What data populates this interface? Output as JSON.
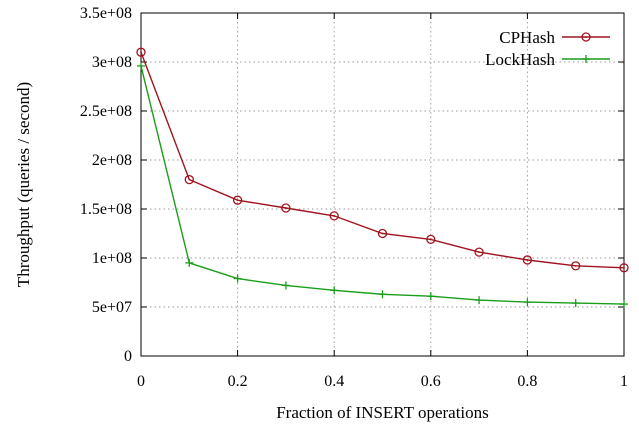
{
  "chart_data": {
    "type": "line",
    "xlabel": "Fraction of INSERT operations",
    "ylabel": "Throughput (queries / second)",
    "xlim": [
      0,
      1
    ],
    "ylim": [
      0,
      350000000
    ],
    "x_ticks": [
      0,
      0.2,
      0.4,
      0.6,
      0.8,
      1
    ],
    "x_tick_labels": [
      "0",
      "0.2",
      "0.4",
      "0.6",
      "0.8",
      "1"
    ],
    "y_ticks": [
      0,
      50000000,
      100000000,
      150000000,
      200000000,
      250000000,
      300000000,
      350000000
    ],
    "y_tick_labels": [
      "0",
      "5e+07",
      "1e+08",
      "1.5e+08",
      "2e+08",
      "2.5e+08",
      "3e+08",
      "3.5e+08"
    ],
    "grid": true,
    "legend_position": "top-right",
    "x": [
      0,
      0.1,
      0.2,
      0.3,
      0.4,
      0.5,
      0.6,
      0.7,
      0.8,
      0.9,
      1.0
    ],
    "series": [
      {
        "name": "CPHash",
        "color": "#a0141e",
        "marker": "circle",
        "values": [
          310000000,
          180000000,
          159000000,
          151000000,
          143000000,
          125000000,
          119000000,
          106000000,
          98000000,
          92000000,
          90000000
        ]
      },
      {
        "name": "LockHash",
        "color": "#1a9e1a",
        "marker": "plus",
        "values": [
          296000000,
          95000000,
          79000000,
          72000000,
          67000000,
          63000000,
          61000000,
          57000000,
          55000000,
          54000000,
          53000000
        ]
      }
    ]
  }
}
